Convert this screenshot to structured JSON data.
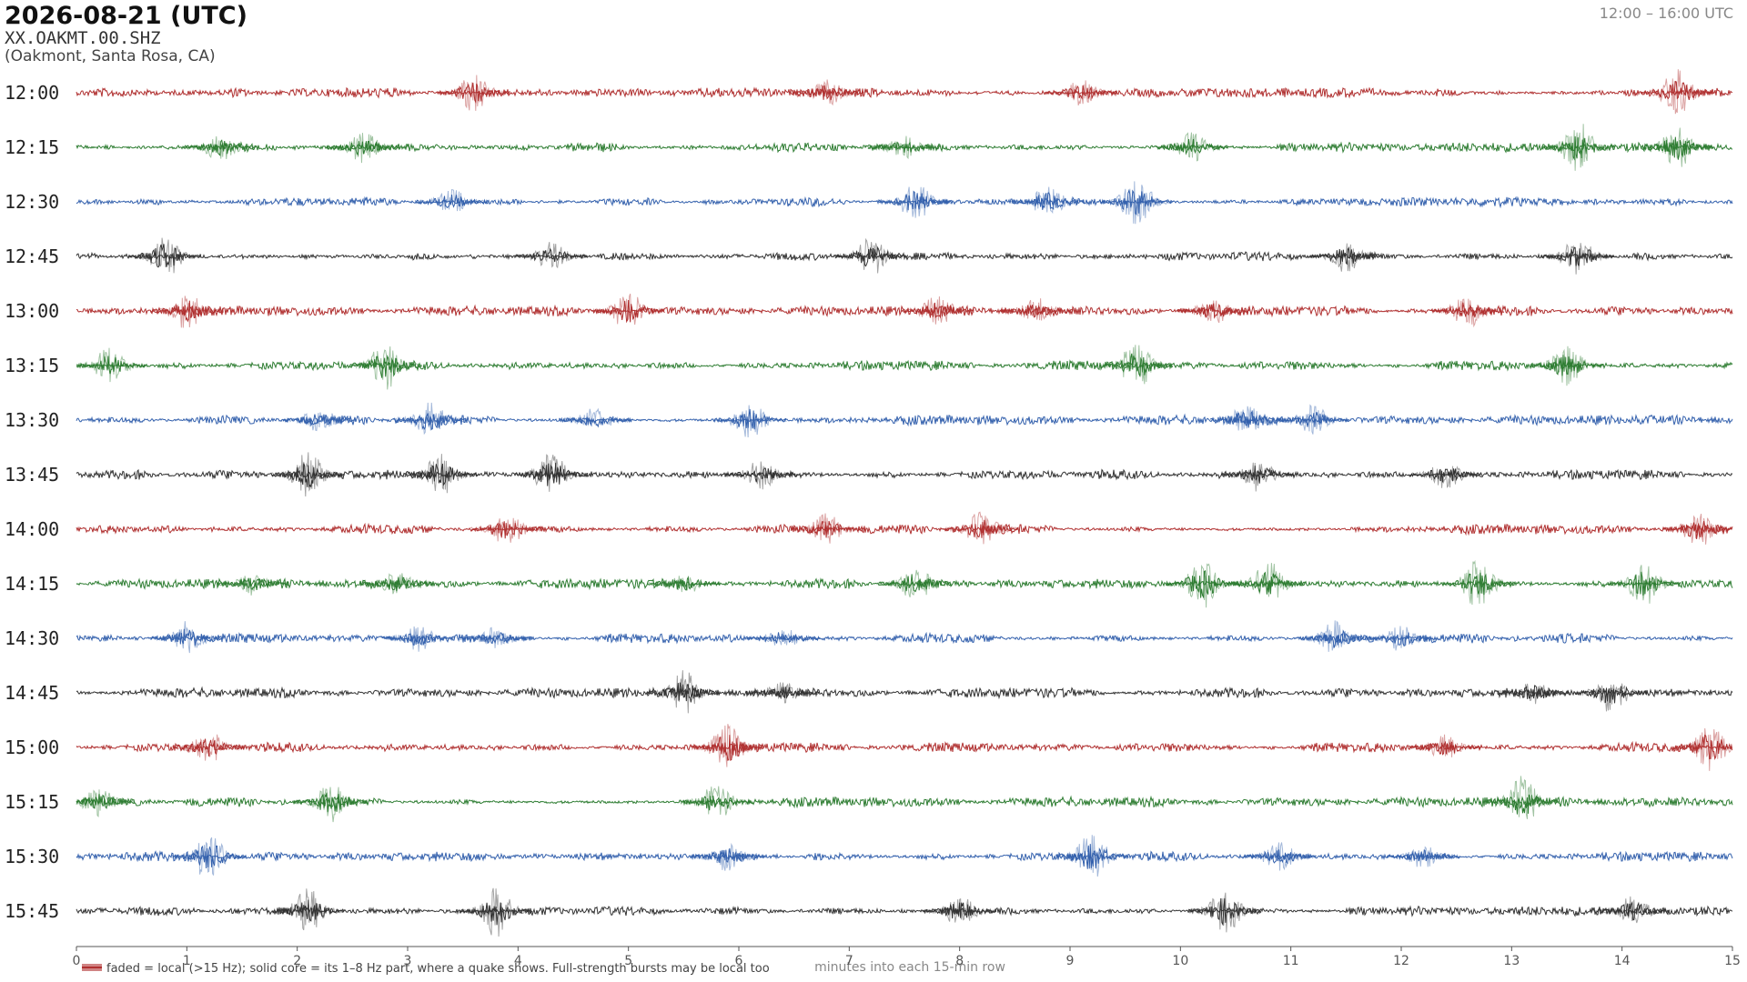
{
  "header": {
    "title": "2026-08-21  (UTC)",
    "station": "XX.OAKMT.00.SHZ",
    "location": "(Oakmont, Santa Rosa, CA)",
    "time_range": "12:00 – 16:00 UTC"
  },
  "chart_data": {
    "type": "helicorder",
    "xlabel": "minutes into each 15-min row",
    "legend": "faded = local (>15 Hz); solid core = its 1–8 Hz part, where a quake shows. Full-strength bursts may be local too",
    "xlim": [
      0,
      15
    ],
    "xticks": [
      0,
      1,
      2,
      3,
      4,
      5,
      6,
      7,
      8,
      9,
      10,
      11,
      12,
      13,
      14,
      15
    ],
    "colors": [
      "#b03030",
      "#2e7d32",
      "#3461ad",
      "#333333"
    ],
    "rows": [
      {
        "label": "12:00",
        "bursts": [
          3.6,
          6.8,
          9.1,
          14.5
        ]
      },
      {
        "label": "12:15",
        "bursts": [
          1.3,
          2.6,
          7.5,
          10.1,
          13.6,
          14.5
        ]
      },
      {
        "label": "12:30",
        "bursts": [
          3.4,
          7.6,
          8.8,
          9.6
        ]
      },
      {
        "label": "12:45",
        "bursts": [
          0.8,
          4.3,
          7.2,
          11.5,
          13.6
        ]
      },
      {
        "label": "13:00",
        "bursts": [
          1.0,
          5.0,
          7.8,
          8.7,
          10.3,
          12.6
        ]
      },
      {
        "label": "13:15",
        "bursts": [
          0.3,
          2.8,
          9.6,
          13.5
        ]
      },
      {
        "label": "13:30",
        "bursts": [
          2.2,
          3.2,
          4.7,
          6.1,
          10.6,
          11.2
        ]
      },
      {
        "label": "13:45",
        "bursts": [
          2.1,
          3.3,
          4.3,
          6.2,
          10.7,
          12.4
        ]
      },
      {
        "label": "14:00",
        "bursts": [
          3.9,
          6.8,
          8.2,
          14.7
        ]
      },
      {
        "label": "14:15",
        "bursts": [
          1.6,
          2.9,
          5.5,
          7.6,
          10.2,
          10.8,
          12.7,
          14.2
        ]
      },
      {
        "label": "14:30",
        "bursts": [
          1.0,
          3.1,
          3.8,
          6.4,
          11.4,
          12.0
        ]
      },
      {
        "label": "14:45",
        "bursts": [
          5.5,
          6.4,
          13.2,
          13.9
        ]
      },
      {
        "label": "15:00",
        "bursts": [
          1.2,
          5.9,
          12.4,
          14.8
        ]
      },
      {
        "label": "15:15",
        "bursts": [
          0.2,
          2.3,
          5.8,
          13.1
        ]
      },
      {
        "label": "15:30",
        "bursts": [
          1.2,
          5.9,
          9.2,
          10.9,
          12.2
        ]
      },
      {
        "label": "15:45",
        "bursts": [
          2.1,
          3.8,
          8.0,
          10.4,
          14.1
        ]
      }
    ]
  }
}
